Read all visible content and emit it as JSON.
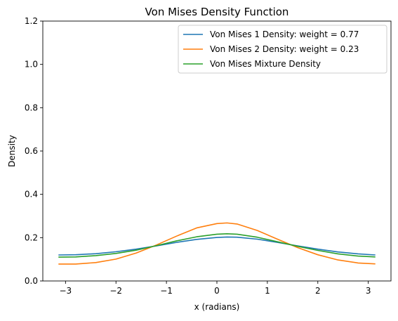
{
  "chart_data": {
    "type": "line",
    "title": "Von Mises Density Function",
    "xlabel": "x (radians)",
    "ylabel": "Density",
    "xlim": [
      -3.45,
      3.45
    ],
    "ylim": [
      0,
      1.2
    ],
    "xticks": [
      -3,
      -2,
      -1,
      0,
      1,
      2,
      3
    ],
    "xtick_labels": [
      "−3",
      "−2",
      "−1",
      "0",
      "1",
      "2",
      "3"
    ],
    "yticks": [
      0.0,
      0.2,
      0.4,
      0.6,
      0.8,
      1.0,
      1.2
    ],
    "ytick_labels": [
      "0.0",
      "0.2",
      "0.4",
      "0.6",
      "0.8",
      "1.0",
      "1.2"
    ],
    "grid": false,
    "legend_position": "top-right",
    "series": [
      {
        "name": "Von Mises 1 Density: weight = 0.77",
        "color": "#1f77b4",
        "x": [
          -3.14,
          -2.8,
          -2.4,
          -2.0,
          -1.6,
          -1.2,
          -0.8,
          -0.4,
          0.0,
          0.2,
          0.4,
          0.8,
          1.2,
          1.6,
          2.0,
          2.4,
          2.8,
          3.14
        ],
        "y": [
          0.12,
          0.121,
          0.126,
          0.135,
          0.147,
          0.162,
          0.178,
          0.192,
          0.201,
          0.203,
          0.202,
          0.193,
          0.178,
          0.162,
          0.147,
          0.134,
          0.125,
          0.12
        ]
      },
      {
        "name": "Von Mises 2 Density: weight = 0.23",
        "color": "#ff7f0e",
        "x": [
          -3.14,
          -2.8,
          -2.4,
          -2.0,
          -1.6,
          -1.2,
          -0.8,
          -0.4,
          0.0,
          0.2,
          0.4,
          0.8,
          1.2,
          1.6,
          2.0,
          2.4,
          2.8,
          3.14
        ],
        "y": [
          0.078,
          0.078,
          0.085,
          0.101,
          0.129,
          0.166,
          0.207,
          0.245,
          0.265,
          0.268,
          0.263,
          0.233,
          0.193,
          0.154,
          0.121,
          0.097,
          0.083,
          0.079
        ]
      },
      {
        "name": "Von Mises Mixture Density",
        "color": "#2ca02c",
        "x": [
          -3.14,
          -2.8,
          -2.4,
          -2.0,
          -1.6,
          -1.2,
          -0.8,
          -0.4,
          0.0,
          0.2,
          0.4,
          0.8,
          1.2,
          1.6,
          2.0,
          2.4,
          2.8,
          3.14
        ],
        "y": [
          0.11,
          0.111,
          0.117,
          0.127,
          0.142,
          0.163,
          0.185,
          0.204,
          0.216,
          0.218,
          0.216,
          0.202,
          0.181,
          0.16,
          0.141,
          0.125,
          0.115,
          0.111
        ]
      }
    ]
  }
}
